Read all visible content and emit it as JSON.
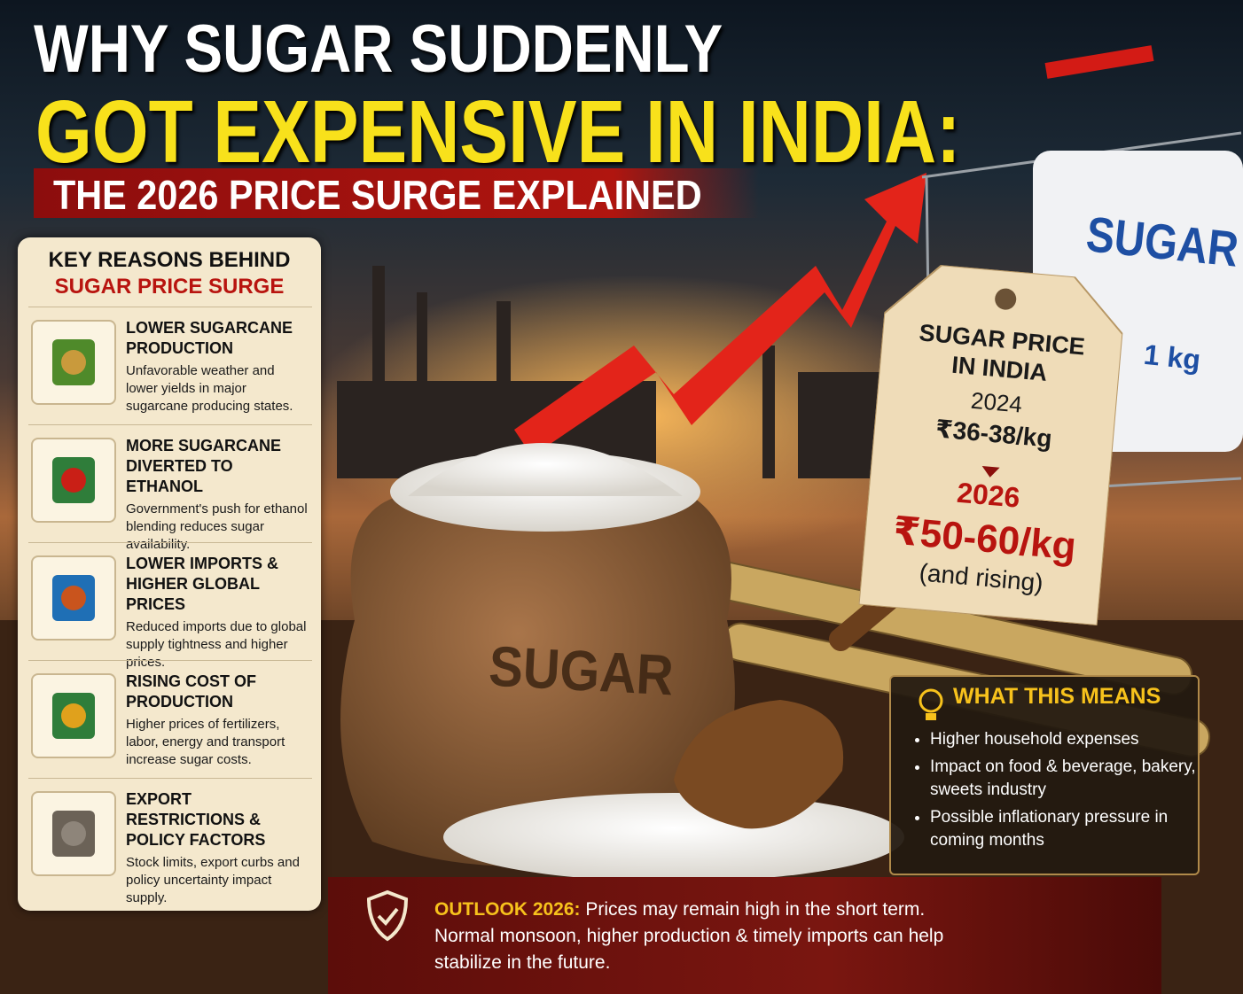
{
  "header": {
    "line1": "WHY SUGAR SUDDENLY",
    "line2": "GOT EXPENSIVE IN INDIA:",
    "subtitle": "THE 2026 PRICE SURGE EXPLAINED"
  },
  "reasons": {
    "title_1": "KEY REASONS BEHIND",
    "title_2": "SUGAR PRICE SURGE",
    "items": [
      {
        "title": "LOWER SUGARCANE PRODUCTION",
        "text": "Unfavorable weather and lower yields in major sugarcane producing states."
      },
      {
        "title": "MORE SUGARCANE DIVERTED TO ETHANOL",
        "text": "Government's push for ethanol blending reduces sugar availability."
      },
      {
        "title": "LOWER IMPORTS & HIGHER GLOBAL PRICES",
        "text": "Reduced imports due to global supply tightness and higher prices."
      },
      {
        "title": "RISING COST OF PRODUCTION",
        "text": "Higher prices of fertilizers, labor, energy and transport increase sugar costs."
      },
      {
        "title": "EXPORT RESTRICTIONS & POLICY FACTORS",
        "text": "Stock limits, export curbs and policy uncertainty impact supply."
      }
    ]
  },
  "price_tag": {
    "title": "SUGAR PRICE IN INDIA",
    "year_1": "2024",
    "price_1": "₹36-38/kg",
    "year_2": "2026",
    "price_2": "₹50-60/kg",
    "note": "(and rising)"
  },
  "bag_label": "SUGAR",
  "package": {
    "label": "SUGAR",
    "weight": "1 kg"
  },
  "means": {
    "title": "WHAT THIS MEANS",
    "items": [
      "Higher household expenses",
      "Impact on food & beverage, bakery, sweets industry",
      "Possible inflationary pressure in coming months"
    ]
  },
  "outlook": {
    "label": "OUTLOOK 2026:",
    "text": "Prices may remain high in the short term. Normal monsoon, higher production & timely imports can help stabilize in the future."
  }
}
